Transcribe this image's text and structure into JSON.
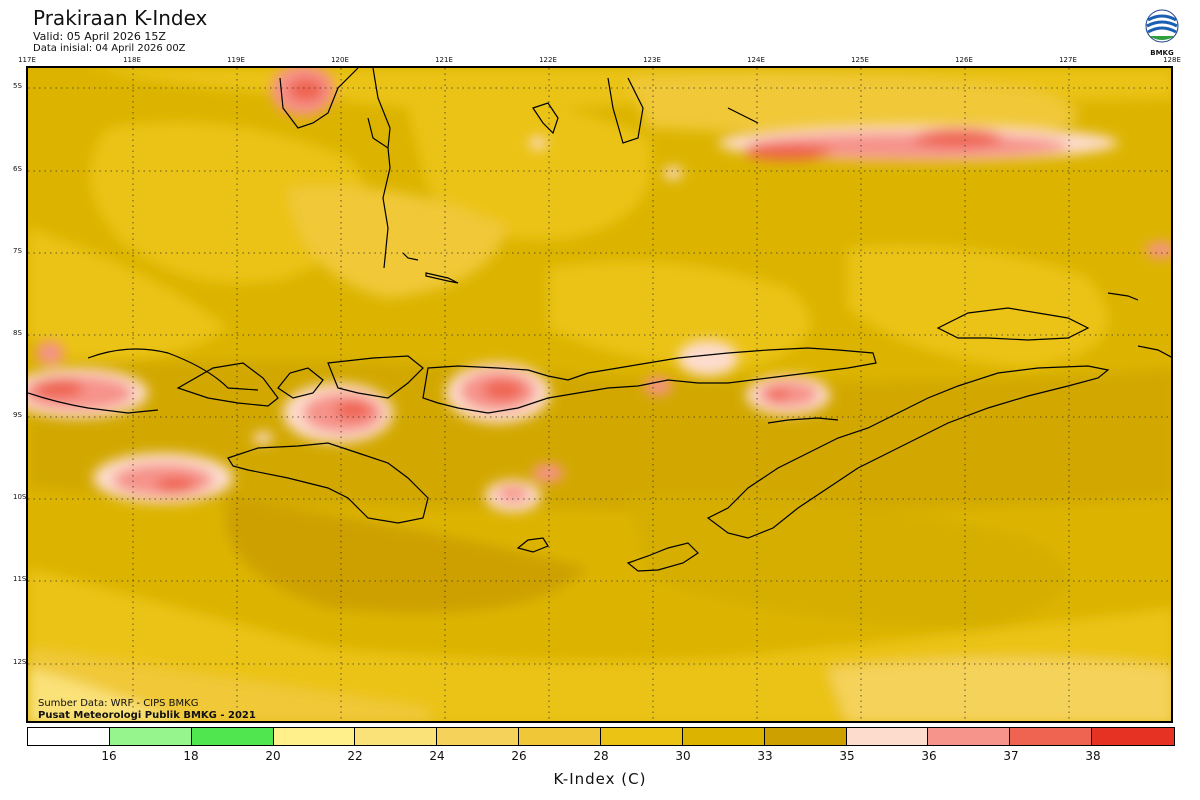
{
  "header": {
    "title": "Prakiraan K-Index",
    "valid": "Valid: 05 April 2026 15Z",
    "initial": "Data inisial: 04 April 2026 00Z"
  },
  "logo": {
    "icon": "bmkg-logo-icon",
    "text": "BMKG"
  },
  "map": {
    "longitude_labels": [
      "117E",
      "118E",
      "119E",
      "120E",
      "121E",
      "122E",
      "123E",
      "124E",
      "125E",
      "126E",
      "127E",
      "128E"
    ],
    "latitude_labels": [
      "5S",
      "6S",
      "7S",
      "8S",
      "9S",
      "10S",
      "11S",
      "12S"
    ]
  },
  "footer": {
    "source": "Sumber Data: WRF - CIPS BMKG",
    "credit": "Pusat Meteorologi Publik BMKG - 2021"
  },
  "colorbar": {
    "colors": [
      "#ffffff",
      "#96f58c",
      "#50e650",
      "#fff08c",
      "#fae178",
      "#f5d25a",
      "#f0c837",
      "#ebc314",
      "#dcb400",
      "#cda000",
      "#fddccd",
      "#f6938a",
      "#ef6450",
      "#e63223"
    ],
    "ticks": [
      "16",
      "18",
      "20",
      "22",
      "24",
      "26",
      "28",
      "30",
      "33",
      "35",
      "36",
      "37",
      "38"
    ],
    "title": "K-Index (C)"
  }
}
